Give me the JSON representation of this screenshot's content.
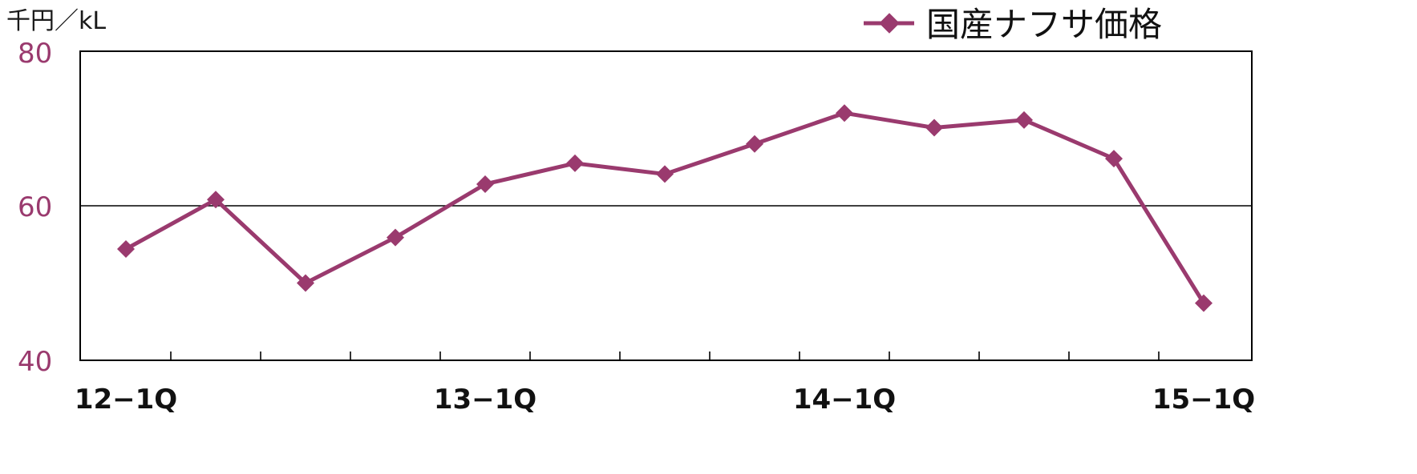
{
  "colors": {
    "series": "#9a3a6e",
    "axis": "#000000",
    "ytick": "#9a3a6e",
    "text": "#111111"
  },
  "chart_data": {
    "type": "line",
    "title": "",
    "unit_label": "千円／kL",
    "xlabel": "",
    "ylabel": "",
    "ylim": [
      40,
      80
    ],
    "yticks": [
      "80",
      "60",
      "40"
    ],
    "grid": "horizontal line at 60",
    "legend_position": "top-right",
    "x_tick_labels": [
      "12−1Q",
      "13−1Q",
      "14−1Q",
      "15−1Q"
    ],
    "series": [
      {
        "name": "国産ナフサ価格",
        "values": [
          54.4,
          60.8,
          50.0,
          55.9,
          62.8,
          65.5,
          64.1,
          68.0,
          72.0,
          70.1,
          71.1,
          66.1,
          47.4
        ]
      }
    ]
  }
}
